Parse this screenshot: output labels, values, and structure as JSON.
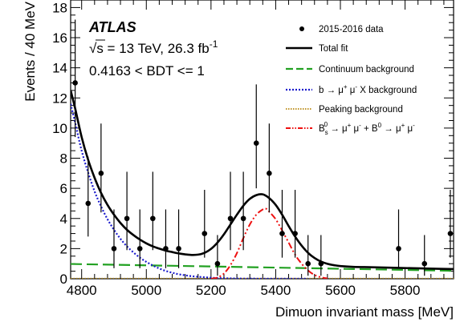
{
  "chart_data": {
    "type": "scatter",
    "experiment": "ATLAS",
    "energy_label": "√s = 13 TeV, 26.3 fb",
    "lumi_exponent": "-1",
    "selection_label": "0.4163 < BDT <= 1",
    "xlabel": "Dimuon invariant mass [MeV]",
    "ylabel": "Events / 40 MeV",
    "xlim": [
      4766,
      5950
    ],
    "ylim": [
      0,
      18.5
    ],
    "xticks": [
      4800,
      5000,
      5200,
      5400,
      5600,
      5800
    ],
    "yticks": [
      0,
      2,
      4,
      6,
      8,
      10,
      12,
      14,
      16,
      18
    ],
    "grid": false,
    "legend_position": "top-right",
    "data_points": {
      "name": "2015-2016 data",
      "x": [
        4780,
        4820,
        4860,
        4900,
        4940,
        4980,
        5020,
        5060,
        5100,
        5180,
        5220,
        5260,
        5300,
        5340,
        5380,
        5420,
        5460,
        5500,
        5540,
        5780,
        5860,
        5940
      ],
      "y": [
        13,
        5,
        7,
        2,
        4,
        2,
        4,
        2,
        2,
        3,
        1,
        4,
        4,
        9,
        7,
        3,
        3,
        1,
        1,
        2,
        1,
        3
      ]
    },
    "curves": {
      "total_fit": {
        "name": "Total fit",
        "color": "#000000",
        "x": [
          4766,
          4780,
          4800,
          4820,
          4840,
          4860,
          4880,
          4900,
          4920,
          4940,
          4960,
          4980,
          5000,
          5020,
          5040,
          5060,
          5080,
          5100,
          5120,
          5140,
          5160,
          5180,
          5200,
          5220,
          5240,
          5260,
          5280,
          5300,
          5320,
          5340,
          5360,
          5380,
          5400,
          5420,
          5440,
          5460,
          5480,
          5500,
          5520,
          5540,
          5560,
          5580,
          5600,
          5640,
          5700,
          5800,
          5900,
          5950
        ],
        "y": [
          12.5,
          11.3,
          9.4,
          7.9,
          6.7,
          5.7,
          4.9,
          4.25,
          3.7,
          3.25,
          2.9,
          2.6,
          2.35,
          2.15,
          2.0,
          1.87,
          1.77,
          1.68,
          1.62,
          1.58,
          1.6,
          1.72,
          1.98,
          2.4,
          2.95,
          3.6,
          4.25,
          4.85,
          5.3,
          5.55,
          5.6,
          5.35,
          4.9,
          4.25,
          3.5,
          2.8,
          2.2,
          1.72,
          1.38,
          1.14,
          0.99,
          0.9,
          0.84,
          0.79,
          0.76,
          0.71,
          0.66,
          0.64
        ]
      },
      "continuum": {
        "name": "Continuum background",
        "color": "#22a122",
        "x": [
          4766,
          5950
        ],
        "y": [
          0.98,
          0.53
        ]
      },
      "b_to_mumuX": {
        "name": "b → μ⁺ μ⁻ X background",
        "color": "#1a1acc",
        "x": [
          4766,
          4780,
          4800,
          4820,
          4840,
          4860,
          4880,
          4900,
          4920,
          4940,
          4960,
          4980,
          5000,
          5020,
          5040,
          5060,
          5080,
          5100,
          5140,
          5200,
          5250,
          5300,
          5400,
          5500
        ],
        "y": [
          11.6,
          10.35,
          8.5,
          7.05,
          5.8,
          4.8,
          3.95,
          3.25,
          2.65,
          2.15,
          1.75,
          1.4,
          1.12,
          0.88,
          0.68,
          0.52,
          0.4,
          0.3,
          0.17,
          0.07,
          0.03,
          0.01,
          0.0,
          0.0
        ]
      },
      "peaking": {
        "name": "Peaking background",
        "color": "#b8860b",
        "x": [
          4766,
          5950
        ],
        "y": [
          0.02,
          0.02
        ]
      },
      "signal": {
        "name": "B_s^0 → μ⁺ μ⁻ + B^0 → μ⁺ μ⁻",
        "color": "#ee1111",
        "x": [
          5200,
          5220,
          5240,
          5260,
          5280,
          5300,
          5320,
          5340,
          5360,
          5370,
          5380,
          5400,
          5420,
          5440,
          5460,
          5480,
          5500,
          5520,
          5540,
          5560
        ],
        "y": [
          0.0,
          0.08,
          0.35,
          0.9,
          1.7,
          2.7,
          3.6,
          4.25,
          4.6,
          4.65,
          4.45,
          3.95,
          3.2,
          2.4,
          1.6,
          1.0,
          0.55,
          0.25,
          0.1,
          0.02
        ]
      }
    },
    "error_bars": [
      {
        "x": 4780,
        "lo": 9.4,
        "hi": 17.2
      },
      {
        "x": 4820,
        "lo": 2.8,
        "hi": 8.1
      },
      {
        "x": 4860,
        "lo": 4.4,
        "hi": 10.3
      },
      {
        "x": 4900,
        "lo": 0.7,
        "hi": 4.6
      },
      {
        "x": 4940,
        "lo": 1.9,
        "hi": 7.1
      },
      {
        "x": 4980,
        "lo": 0.7,
        "hi": 4.6
      },
      {
        "x": 5020,
        "lo": 1.9,
        "hi": 7.1
      },
      {
        "x": 5060,
        "lo": 0.7,
        "hi": 4.6
      },
      {
        "x": 5100,
        "lo": 0.7,
        "hi": 4.6
      },
      {
        "x": 5180,
        "lo": 1.4,
        "hi": 5.9
      },
      {
        "x": 5220,
        "lo": 0.2,
        "hi": 2.9
      },
      {
        "x": 5260,
        "lo": 1.9,
        "hi": 7.1
      },
      {
        "x": 5300,
        "lo": 1.9,
        "hi": 7.1
      },
      {
        "x": 5340,
        "lo": 6.0,
        "hi": 12.9
      },
      {
        "x": 5380,
        "lo": 4.4,
        "hi": 10.3
      },
      {
        "x": 5420,
        "lo": 1.4,
        "hi": 5.9
      },
      {
        "x": 5460,
        "lo": 1.4,
        "hi": 5.9
      },
      {
        "x": 5500,
        "lo": 0.2,
        "hi": 2.9
      },
      {
        "x": 5540,
        "lo": 0.2,
        "hi": 2.9
      },
      {
        "x": 5780,
        "lo": 0.7,
        "hi": 4.6
      },
      {
        "x": 5860,
        "lo": 0.2,
        "hi": 2.9
      },
      {
        "x": 5940,
        "lo": 1.4,
        "hi": 5.9
      }
    ],
    "legend": [
      {
        "key": "data",
        "label": "2015-2016 data",
        "style": "marker",
        "color": "#000000"
      },
      {
        "key": "total",
        "label": "Total fit",
        "style": "solid",
        "color": "#000000"
      },
      {
        "key": "continuum",
        "label": "Continuum background",
        "style": "dashed",
        "color": "#22a122"
      },
      {
        "key": "bmumux",
        "label": "b → μ",
        "label2": " μ",
        "label3": " X background",
        "style": "dotted",
        "color": "#1a1acc"
      },
      {
        "key": "peaking",
        "label": "Peaking background",
        "style": "dotted",
        "color": "#b8860b"
      },
      {
        "key": "signal",
        "label": "B",
        "style": "dashdot",
        "color": "#ee1111"
      }
    ]
  }
}
